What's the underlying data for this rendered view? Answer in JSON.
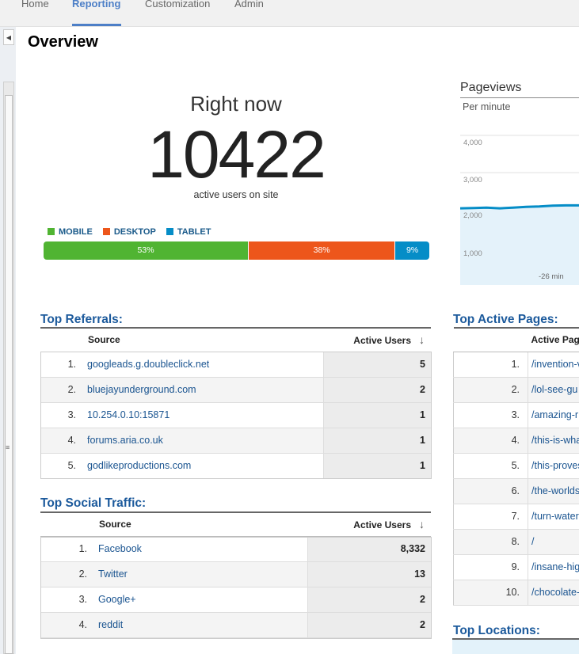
{
  "nav": {
    "tabs": [
      "Home",
      "Reporting",
      "Customization",
      "Admin"
    ]
  },
  "page": {
    "title": "Overview"
  },
  "right_now": {
    "label": "Right now",
    "count": "10422",
    "sub": "active users on site",
    "legend": [
      "MOBILE",
      "DESKTOP",
      "TABLET"
    ],
    "segments": [
      {
        "label": "53%",
        "value": 53,
        "color": "#50b432"
      },
      {
        "label": "38%",
        "value": 38,
        "color": "#ed561b"
      },
      {
        "label": "9%",
        "value": 9,
        "color": "#058dc7"
      }
    ]
  },
  "pageviews": {
    "title": "Pageviews",
    "subtitle": "Per minute",
    "yticks": [
      "4,000",
      "3,000",
      "2,000",
      "1,000"
    ],
    "xtick": "-26 min",
    "line_color": "#058dc7"
  },
  "chart_data": {
    "type": "area",
    "title": "Pageviews",
    "subtitle": "Per minute",
    "ylim": [
      0,
      4500
    ],
    "yticks": [
      1000,
      2000,
      3000,
      4000
    ],
    "xticks": [
      "-26 min"
    ],
    "series": [
      {
        "values": [
          2040,
          2050,
          2060,
          2040,
          2060,
          2080,
          2090,
          2110,
          2120,
          2120
        ]
      }
    ]
  },
  "top_referrals": {
    "title": "Top Referrals:",
    "col_source": "Source",
    "col_users": "Active Users",
    "rows": [
      {
        "n": "1.",
        "source": "googleads.g.doubleclick.net",
        "users": "5"
      },
      {
        "n": "2.",
        "source": "bluejayunderground.com",
        "users": "2"
      },
      {
        "n": "3.",
        "source": "10.254.0.10:15871",
        "users": "1"
      },
      {
        "n": "4.",
        "source": "forums.aria.co.uk",
        "users": "1"
      },
      {
        "n": "5.",
        "source": "godlikeproductions.com",
        "users": "1"
      }
    ]
  },
  "top_social": {
    "title": "Top Social Traffic:",
    "col_source": "Source",
    "col_users": "Active Users",
    "rows": [
      {
        "n": "1.",
        "source": "Facebook",
        "users": "8,332"
      },
      {
        "n": "2.",
        "source": "Twitter",
        "users": "13"
      },
      {
        "n": "3.",
        "source": "Google+",
        "users": "2"
      },
      {
        "n": "4.",
        "source": "reddit",
        "users": "2"
      }
    ]
  },
  "top_pages": {
    "title": "Top Active Pages:",
    "col_page": "Active Pag",
    "rows": [
      {
        "n": "1.",
        "page": "/invention-v"
      },
      {
        "n": "2.",
        "page": "/lol-see-gu"
      },
      {
        "n": "3.",
        "page": "/amazing-r"
      },
      {
        "n": "4.",
        "page": "/this-is-wha"
      },
      {
        "n": "5.",
        "page": "/this-proves"
      },
      {
        "n": "6.",
        "page": "/the-worlds"
      },
      {
        "n": "7.",
        "page": "/turn-water"
      },
      {
        "n": "8.",
        "page": "/"
      },
      {
        "n": "9.",
        "page": "/insane-hig"
      },
      {
        "n": "10.",
        "page": "/chocolate-"
      }
    ]
  },
  "top_locations": {
    "title": "Top Locations:"
  }
}
